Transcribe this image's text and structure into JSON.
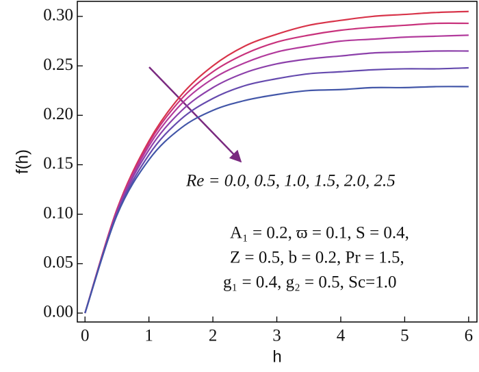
{
  "chart_data": {
    "type": "line",
    "x_label": "h",
    "y_label": "f(h)",
    "x": [
      0,
      0.5,
      1,
      1.5,
      2,
      2.5,
      3,
      3.5,
      4,
      4.5,
      5,
      5.5,
      6
    ],
    "series": [
      {
        "color": "#d8344a",
        "values": [
          0,
          0.105,
          0.174,
          0.22,
          0.25,
          0.27,
          0.282,
          0.291,
          0.296,
          0.3,
          0.302,
          0.304,
          0.305
        ]
      },
      {
        "color": "#c8327c",
        "values": [
          0,
          0.104,
          0.172,
          0.216,
          0.244,
          0.262,
          0.274,
          0.281,
          0.286,
          0.289,
          0.291,
          0.293,
          0.293
        ]
      },
      {
        "color": "#b23a9c",
        "values": [
          0,
          0.103,
          0.169,
          0.211,
          0.237,
          0.253,
          0.264,
          0.27,
          0.275,
          0.277,
          0.279,
          0.28,
          0.281
        ]
      },
      {
        "color": "#8c40aa",
        "values": [
          0,
          0.102,
          0.165,
          0.204,
          0.228,
          0.243,
          0.252,
          0.257,
          0.26,
          0.263,
          0.264,
          0.265,
          0.265
        ]
      },
      {
        "color": "#654aae",
        "values": [
          0,
          0.1,
          0.16,
          0.196,
          0.217,
          0.23,
          0.237,
          0.242,
          0.244,
          0.246,
          0.247,
          0.247,
          0.248
        ]
      },
      {
        "color": "#4256a8",
        "values": [
          0,
          0.099,
          0.155,
          0.187,
          0.205,
          0.215,
          0.221,
          0.225,
          0.226,
          0.228,
          0.228,
          0.229,
          0.229
        ]
      }
    ],
    "xlim": [
      -0.12,
      6.13
    ],
    "ylim": [
      -0.009,
      0.3152
    ],
    "xticks": [
      0,
      1,
      2,
      3,
      4,
      5,
      6
    ],
    "yticks": [
      {
        "value": 0,
        "label": "0.00"
      },
      0.05,
      {
        "value": 0.1,
        "label": "0.10"
      },
      0.15,
      {
        "value": 0.2,
        "label": "0.20"
      },
      0.25,
      {
        "value": 0.3,
        "label": "0.30"
      }
    ],
    "annotations": [
      "Re = 0.0, 0.5, 1.0, 1.5, 2.0, 2.5",
      "A₁ = 0.2,  ϖ = 0.1, S = 0.4,",
      "Z = 0.5,  b = 0.2, Pr = 1.5,",
      "g₁ = 0.4, g₂ = 0.5,  Sc=1.0"
    ]
  }
}
